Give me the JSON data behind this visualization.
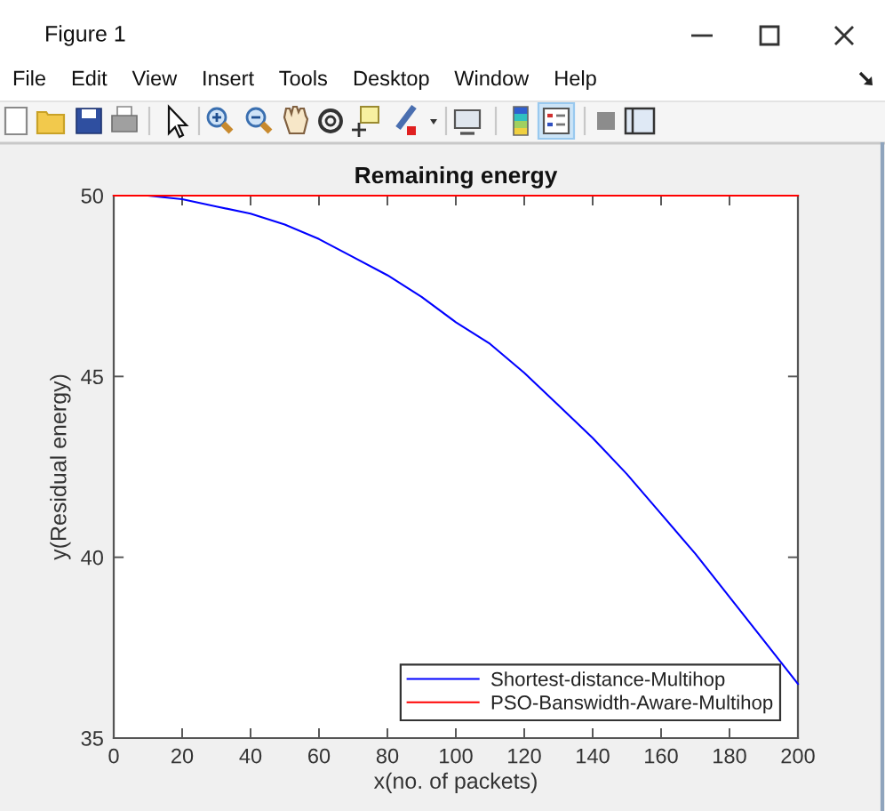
{
  "chart_data": {
    "type": "line",
    "title": "Remaining energy",
    "xlabel": "x(no. of packets)",
    "ylabel": "y(Residual energy)",
    "x": [
      0,
      10,
      20,
      30,
      40,
      50,
      60,
      70,
      80,
      90,
      100,
      110,
      120,
      130,
      140,
      150,
      160,
      170,
      180,
      190,
      200
    ],
    "series": [
      {
        "name": "Shortest-distance-Multihop",
        "color": "#0000ff",
        "values": [
          50,
          50.0,
          49.9,
          49.7,
          49.5,
          49.2,
          48.8,
          48.3,
          47.8,
          47.2,
          46.5,
          45.9,
          45.1,
          44.2,
          43.3,
          42.3,
          41.2,
          40.1,
          38.9,
          37.7,
          36.5
        ]
      },
      {
        "name": "PSO-Banswidth-Aware-Multihop",
        "color": "#ff0000",
        "x": [
          0,
          200
        ],
        "values": [
          50,
          50
        ]
      }
    ],
    "xlim": [
      0,
      200
    ],
    "ylim": [
      35,
      50
    ],
    "xticks": [
      0,
      20,
      40,
      60,
      80,
      100,
      120,
      140,
      160,
      180,
      200
    ],
    "yticks": [
      35,
      40,
      45,
      50
    ],
    "grid": false,
    "legend": "bottom right",
    "line_style": "solid",
    "marker": "none",
    "annotations": [
      "Figure 1",
      "File",
      "Edit",
      "View",
      "Insert",
      "Tools",
      "Desktop",
      "Window",
      "Help"
    ]
  }
}
